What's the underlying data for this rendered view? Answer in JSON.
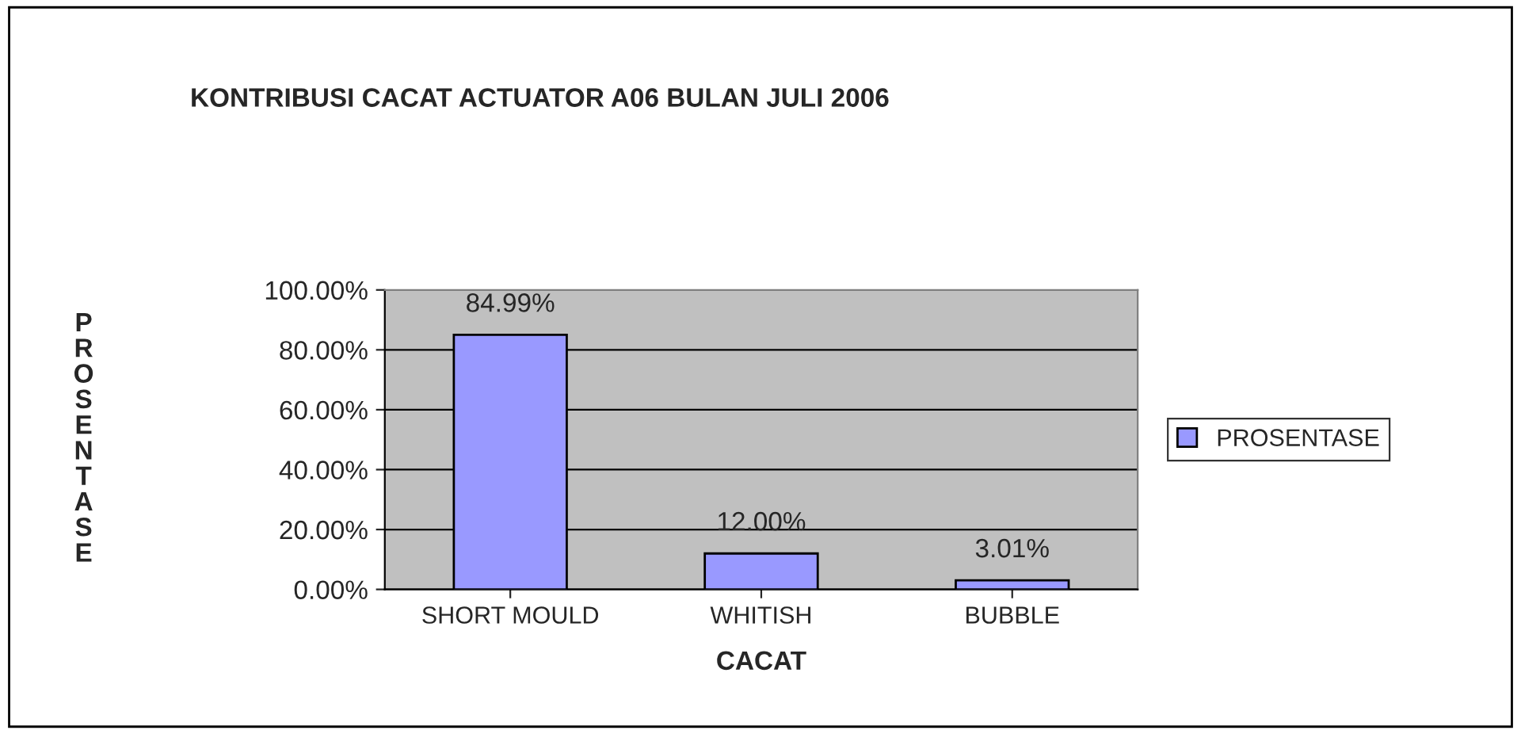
{
  "chart_data": {
    "type": "bar",
    "title": "KONTRIBUSI CACAT ACTUATOR A06 BULAN JULI 2006",
    "xlabel": "CACAT",
    "ylabel": "PROSENTASE",
    "categories": [
      "SHORT MOULD",
      "WHITISH",
      "BUBBLE"
    ],
    "series": [
      {
        "name": "PROSENTASE",
        "color": "#9999ff",
        "values": [
          84.99,
          12.0,
          3.01
        ],
        "value_labels": [
          "84.99%",
          "12.00%",
          "3.01%"
        ]
      }
    ],
    "ylim": [
      0,
      100
    ],
    "yticks": [
      {
        "value": 0,
        "label": "0.00%"
      },
      {
        "value": 20,
        "label": "20.00%"
      },
      {
        "value": 40,
        "label": "40.00%"
      },
      {
        "value": 60,
        "label": "60.00%"
      },
      {
        "value": 80,
        "label": "80.00%"
      },
      {
        "value": 100,
        "label": "100.00%"
      }
    ],
    "grid": "y",
    "legend": "right"
  }
}
